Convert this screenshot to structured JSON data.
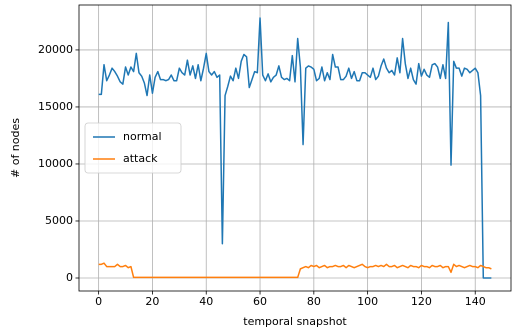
{
  "chart_data": {
    "type": "line",
    "xlabel": "temporal snapshot",
    "ylabel": "# of nodes",
    "x": [
      0,
      1,
      2,
      3,
      4,
      5,
      6,
      7,
      8,
      9,
      10,
      11,
      12,
      13,
      14,
      15,
      16,
      17,
      18,
      19,
      20,
      21,
      22,
      23,
      24,
      25,
      26,
      27,
      28,
      29,
      30,
      31,
      32,
      33,
      34,
      35,
      36,
      37,
      38,
      39,
      40,
      41,
      42,
      43,
      44,
      45,
      46,
      47,
      48,
      49,
      50,
      51,
      52,
      53,
      54,
      55,
      56,
      57,
      58,
      59,
      60,
      61,
      62,
      63,
      64,
      65,
      66,
      67,
      68,
      69,
      70,
      71,
      72,
      73,
      74,
      75,
      76,
      77,
      78,
      79,
      80,
      81,
      82,
      83,
      84,
      85,
      86,
      87,
      88,
      89,
      90,
      91,
      92,
      93,
      94,
      95,
      96,
      97,
      98,
      99,
      100,
      101,
      102,
      103,
      104,
      105,
      106,
      107,
      108,
      109,
      110,
      111,
      112,
      113,
      114,
      115,
      116,
      117,
      118,
      119,
      120,
      121,
      122,
      123,
      124,
      125,
      126,
      127,
      128,
      129,
      130,
      131,
      132,
      133,
      134,
      135,
      136,
      137,
      138,
      139,
      140,
      141,
      142,
      143,
      144,
      145,
      146
    ],
    "series": [
      {
        "name": "normal",
        "color": "#1f77b4",
        "values": [
          16100,
          16100,
          18700,
          17300,
          17800,
          18400,
          18100,
          17700,
          17200,
          17000,
          18500,
          17800,
          18500,
          18100,
          19700,
          18000,
          17700,
          17100,
          16000,
          17800,
          16200,
          17600,
          18100,
          17400,
          17400,
          17300,
          17400,
          17800,
          17300,
          17300,
          18400,
          18000,
          17800,
          19100,
          17800,
          18600,
          17500,
          18700,
          17300,
          18400,
          19700,
          18100,
          17800,
          18100,
          17600,
          17800,
          3000,
          16000,
          16800,
          17700,
          17300,
          18400,
          17500,
          19000,
          19600,
          19400,
          16700,
          17400,
          18100,
          18000,
          22800,
          17800,
          17300,
          17900,
          17200,
          17600,
          17800,
          18600,
          17600,
          17400,
          17500,
          17300,
          19500,
          17200,
          21000,
          18500,
          11700,
          18400,
          18600,
          18500,
          18300,
          17300,
          17500,
          18500,
          17300,
          18000,
          17400,
          19600,
          18500,
          18500,
          17400,
          17400,
          17700,
          18400,
          17500,
          18100,
          17300,
          17300,
          18000,
          18000,
          17800,
          17600,
          18400,
          17400,
          17700,
          18600,
          19200,
          18400,
          18000,
          18200,
          17800,
          19300,
          18000,
          21000,
          18800,
          17500,
          18400,
          17400,
          17000,
          18800,
          17700,
          18300,
          17800,
          17600,
          18700,
          18800,
          18500,
          17500,
          18700,
          17500,
          22400,
          9900,
          19000,
          18400,
          18400,
          17700,
          18400,
          18300,
          18000,
          18200,
          18400,
          18000,
          16000,
          0,
          0,
          0,
          0
        ]
      },
      {
        "name": "attack",
        "color": "#ff7f0e",
        "values": [
          1200,
          1200,
          1300,
          1000,
          1000,
          1000,
          1000,
          1200,
          1000,
          1000,
          1100,
          900,
          1000,
          50,
          50,
          50,
          50,
          50,
          50,
          50,
          50,
          50,
          50,
          50,
          50,
          50,
          50,
          50,
          50,
          50,
          50,
          50,
          50,
          50,
          50,
          50,
          50,
          50,
          50,
          50,
          50,
          50,
          50,
          50,
          50,
          50,
          50,
          50,
          50,
          50,
          50,
          50,
          50,
          50,
          50,
          50,
          50,
          50,
          50,
          50,
          50,
          50,
          50,
          50,
          50,
          50,
          50,
          50,
          50,
          50,
          50,
          50,
          50,
          50,
          50,
          800,
          900,
          1000,
          900,
          1100,
          1000,
          1100,
          900,
          1000,
          1100,
          900,
          1000,
          1000,
          1100,
          1000,
          1000,
          1100,
          900,
          1100,
          1000,
          900,
          1000,
          1100,
          1200,
          1000,
          900,
          1000,
          1000,
          1100,
          1000,
          1100,
          1000,
          1200,
          1000,
          1000,
          1100,
          900,
          1000,
          1100,
          1000,
          900,
          1100,
          1000,
          1000,
          900,
          1100,
          1000,
          1000,
          900,
          1100,
          1000,
          1000,
          1100,
          900,
          1000,
          1000,
          500,
          1200,
          1000,
          1100,
          1000,
          900,
          1000,
          1100,
          1000,
          1000,
          900,
          1100,
          1000,
          900,
          900,
          800
        ]
      }
    ],
    "xlim": [
      -7.3,
      153.3
    ],
    "ylim": [
      -1140,
      23940
    ],
    "xticks": [
      0,
      20,
      40,
      60,
      80,
      100,
      120,
      140
    ],
    "yticks": [
      0,
      5000,
      10000,
      15000,
      20000
    ],
    "grid": true,
    "legend": "center left"
  }
}
